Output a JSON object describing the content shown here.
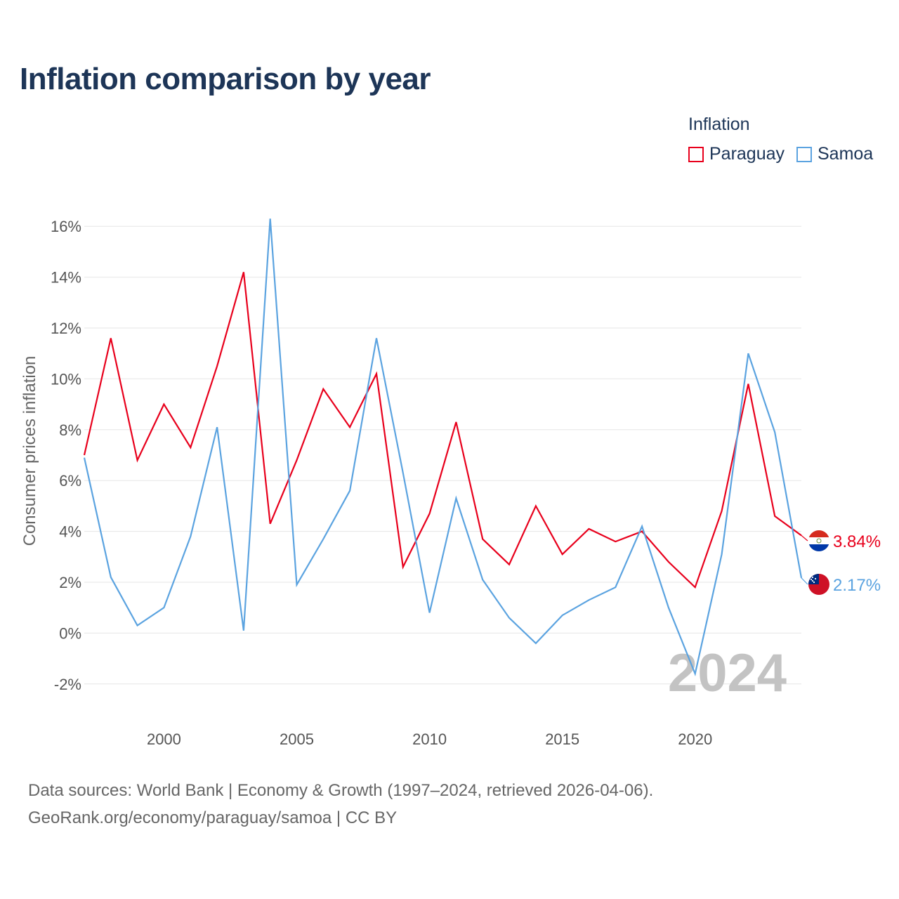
{
  "title": "Inflation comparison by year",
  "legend": {
    "title": "Inflation",
    "items": [
      {
        "name": "Paraguay",
        "color": "#e8001c"
      },
      {
        "name": "Samoa",
        "color": "#5ba3e0"
      }
    ]
  },
  "footer": {
    "line1": "Data sources: World Bank | Economy & Growth (1997–2024, retrieved 2026-04-06).",
    "line2": "GeoRank.org/economy/paraguay/samoa | CC BY"
  },
  "chart_data": {
    "type": "line",
    "title": "Inflation comparison by year",
    "xlabel": "",
    "ylabel": "Consumer prices inflation",
    "x": [
      1997,
      1998,
      1999,
      2000,
      2001,
      2002,
      2003,
      2004,
      2005,
      2006,
      2007,
      2008,
      2009,
      2010,
      2011,
      2012,
      2013,
      2014,
      2015,
      2016,
      2017,
      2018,
      2019,
      2020,
      2021,
      2022,
      2023,
      2024
    ],
    "xlim": [
      1997,
      2024
    ],
    "ylim": [
      -3,
      17
    ],
    "x_ticks": [
      2000,
      2005,
      2010,
      2015,
      2020
    ],
    "y_ticks": [
      -2,
      0,
      2,
      4,
      6,
      8,
      10,
      12,
      14,
      16
    ],
    "y_tick_labels": [
      "-2%",
      "0%",
      "2%",
      "4%",
      "6%",
      "8%",
      "10%",
      "12%",
      "14%",
      "16%"
    ],
    "grid": true,
    "watermark_year": "2024",
    "series": [
      {
        "name": "Paraguay",
        "color": "#e8001c",
        "end_label": "3.84%",
        "flag": "paraguay-flag",
        "values": [
          7.0,
          11.6,
          6.8,
          9.0,
          7.3,
          10.5,
          14.2,
          4.3,
          6.8,
          9.6,
          8.1,
          10.2,
          2.6,
          4.7,
          8.3,
          3.7,
          2.7,
          5.0,
          3.1,
          4.1,
          3.6,
          4.0,
          2.8,
          1.8,
          4.8,
          9.8,
          4.6,
          3.84
        ]
      },
      {
        "name": "Samoa",
        "color": "#5ba3e0",
        "end_label": "2.17%",
        "flag": "samoa-flag",
        "values": [
          6.9,
          2.2,
          0.3,
          1.0,
          3.8,
          8.1,
          0.1,
          16.3,
          1.9,
          3.7,
          5.6,
          11.6,
          6.3,
          0.8,
          5.3,
          2.1,
          0.6,
          -0.4,
          0.7,
          1.3,
          1.8,
          4.2,
          1.0,
          -1.6,
          3.1,
          11.0,
          7.9,
          2.17
        ]
      }
    ]
  }
}
